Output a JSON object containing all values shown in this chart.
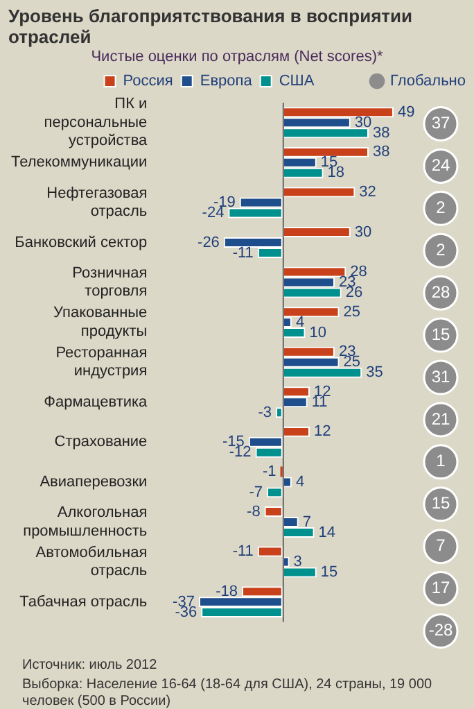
{
  "chart_data": [
    {
      "type": "bar",
      "orientation": "horizontal",
      "title": "Уровень благоприятствования в восприятии отраслей",
      "subtitle": "Чистые оценки по отраслям (Net scores)*",
      "categories": [
        "ПК и персональные устройства",
        "Телекоммуникации",
        "Нефтегазовая отрасль",
        "Банковский сектор",
        "Розничная торговля",
        "Упакованные продукты",
        "Ресторанная индустрия",
        "Фармацевтика",
        "Страхование",
        "Авиаперевозки",
        "Алкогольная промышленность",
        "Автомобильная отрасль",
        "Табачная отрасль"
      ],
      "series": [
        {
          "name": "Россия",
          "color": "#c8411a",
          "values": [
            49,
            38,
            32,
            30,
            28,
            25,
            23,
            12,
            12,
            -1,
            -8,
            -11,
            -18
          ]
        },
        {
          "name": "Европа",
          "color": "#1f4e8c",
          "values": [
            30,
            15,
            -19,
            -26,
            23,
            4,
            25,
            11,
            -15,
            4,
            7,
            3,
            -37
          ]
        },
        {
          "name": "США",
          "color": "#00918f",
          "values": [
            38,
            18,
            -24,
            -11,
            26,
            10,
            35,
            -3,
            -12,
            -7,
            14,
            15,
            -36
          ]
        }
      ],
      "data_labels": true,
      "legend": "top",
      "annotations": [
        "Источник: июль 2012",
        "Выборка: Население 16-64 (18-64 для США), 24 страны, 19 000 человек (500 в России)"
      ]
    },
    {
      "type": "other",
      "categories": [
        null,
        null,
        null,
        null,
        null,
        null,
        null,
        null,
        null,
        null,
        null,
        null,
        null
      ],
      "series": [
        {
          "name": "Глобально",
          "color": "#8c8c8c",
          "values": [
            37,
            24,
            2,
            2,
            28,
            15,
            31,
            21,
            1,
            15,
            7,
            17,
            -28
          ]
        }
      ],
      "data_labels": true,
      "legend": "top"
    }
  ]
}
